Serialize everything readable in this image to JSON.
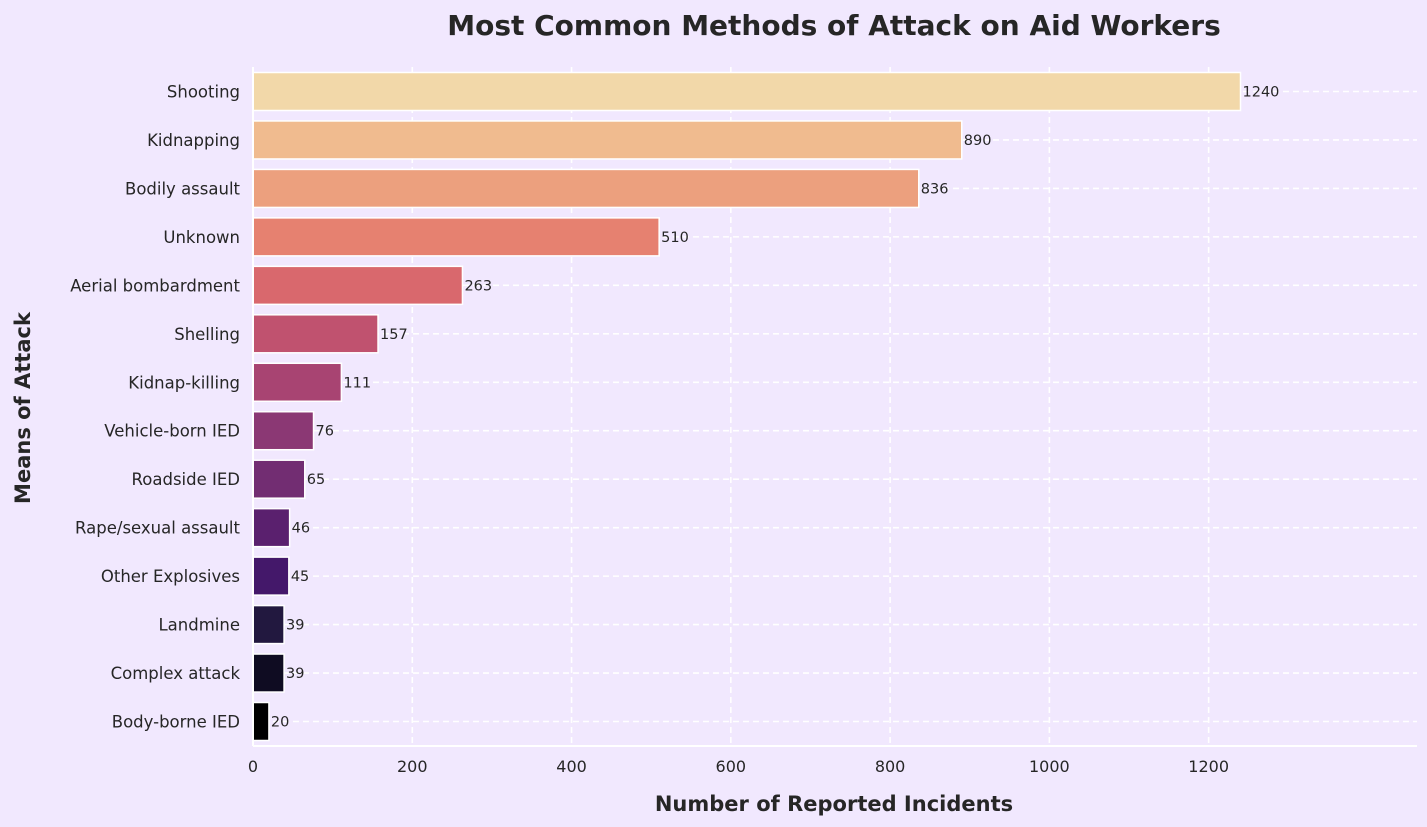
{
  "chart_data": {
    "type": "bar",
    "orientation": "horizontal",
    "title": "Most Common Methods of Attack on Aid Workers",
    "xlabel": "Number of Reported Incidents",
    "ylabel": "Means of Attack",
    "xlim": [
      0,
      1300
    ],
    "xticks": [
      0,
      200,
      400,
      600,
      800,
      1000,
      1200
    ],
    "grid": true,
    "categories": [
      "Shooting",
      "Kidnapping",
      "Bodily assault",
      "Unknown",
      "Aerial bombardment",
      "Shelling",
      "Kidnap-killing",
      "Vehicle-born IED",
      "Roadside IED",
      "Rape/sexual assault",
      "Other Explosives",
      "Landmine",
      "Complex attack",
      "Body-borne IED"
    ],
    "values": [
      1240,
      890,
      836,
      510,
      263,
      157,
      111,
      76,
      65,
      46,
      45,
      39,
      39,
      20
    ],
    "colors": [
      "#f2d8a9",
      "#f0bb8f",
      "#eca07e",
      "#e68170",
      "#d9686d",
      "#c0526f",
      "#a84472",
      "#8b3874",
      "#722d72",
      "#5a206e",
      "#44186a",
      "#22183f",
      "#0f0c22",
      "#000000"
    ]
  }
}
